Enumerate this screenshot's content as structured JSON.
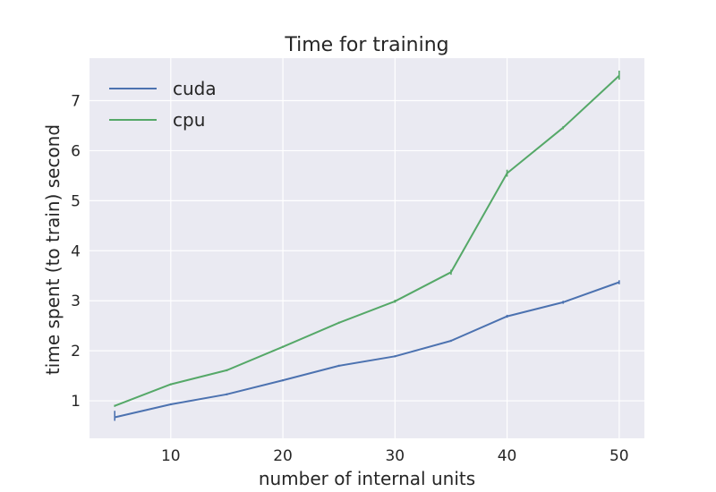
{
  "chart_data": {
    "type": "line",
    "title": "Time for training",
    "xlabel": "number of internal units",
    "ylabel": "time spent (to train) second",
    "x": [
      5,
      10,
      15,
      20,
      25,
      30,
      35,
      40,
      45,
      50
    ],
    "xlim": [
      2.75,
      52.25
    ],
    "ylim": [
      0.25,
      7.85
    ],
    "xticks": [
      10,
      20,
      30,
      40,
      50
    ],
    "yticks": [
      1,
      2,
      3,
      4,
      5,
      6,
      7
    ],
    "grid": true,
    "legend_position": "top-left",
    "series": [
      {
        "name": "cuda",
        "color": "#4c72b0",
        "values": [
          0.67,
          0.93,
          1.13,
          1.41,
          1.7,
          1.89,
          2.2,
          2.69,
          2.97,
          3.37
        ],
        "error_low": [
          0.6,
          0.91,
          1.11,
          1.39,
          1.68,
          1.87,
          2.18,
          2.66,
          2.94,
          3.33
        ],
        "error_high": [
          0.8,
          0.95,
          1.15,
          1.43,
          1.72,
          1.91,
          2.22,
          2.72,
          3.0,
          3.41
        ]
      },
      {
        "name": "cpu",
        "color": "#55a868",
        "values": [
          0.9,
          1.33,
          1.61,
          2.08,
          2.56,
          2.99,
          3.57,
          5.55,
          6.46,
          7.5
        ],
        "error_low": [
          0.88,
          1.31,
          1.59,
          2.06,
          2.54,
          2.96,
          3.52,
          5.48,
          6.43,
          7.42
        ],
        "error_high": [
          0.92,
          1.35,
          1.63,
          2.1,
          2.58,
          3.02,
          3.62,
          5.62,
          6.49,
          7.6
        ]
      }
    ]
  }
}
